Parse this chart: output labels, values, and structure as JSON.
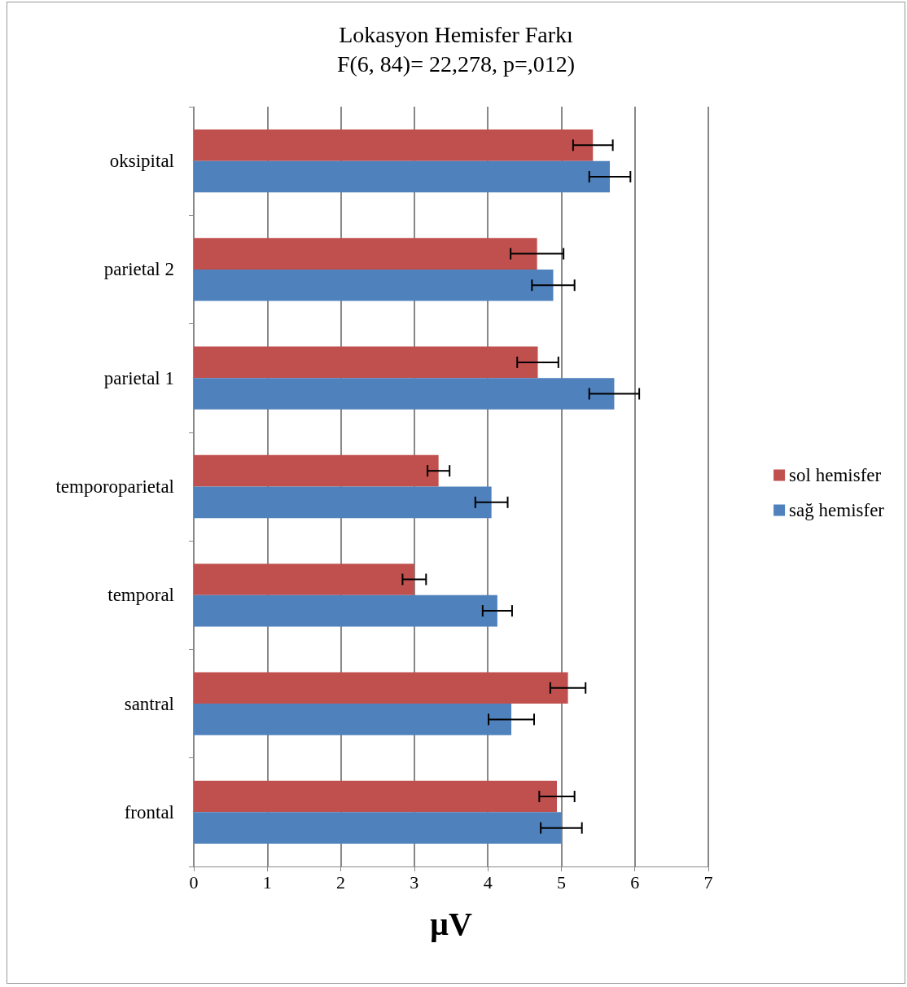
{
  "chart_data": {
    "type": "bar",
    "title": "Lokasyon Hemisfer Farkı",
    "subtitle": "F(6, 84)= 22,278, p=,012)",
    "xlabel": "µV",
    "orientation": "horizontal",
    "categories": [
      "oksipital",
      "parietal 2",
      "parietal 1",
      "temporoparietal",
      "temporal",
      "santral",
      "frontal"
    ],
    "series": [
      {
        "name": "sol hemisfer",
        "color": "#c0504d",
        "values": [
          5.43,
          4.67,
          4.68,
          3.33,
          3.0,
          5.09,
          4.94
        ],
        "errors": [
          0.27,
          0.36,
          0.28,
          0.15,
          0.16,
          0.24,
          0.24
        ]
      },
      {
        "name": "sağ hemisfer",
        "color": "#4f81bd",
        "values": [
          5.66,
          4.89,
          5.72,
          4.05,
          4.13,
          4.32,
          5.0
        ],
        "errors": [
          0.28,
          0.29,
          0.34,
          0.22,
          0.2,
          0.31,
          0.28
        ]
      }
    ],
    "xlim": [
      0,
      7
    ],
    "xticks": [
      0,
      1,
      2,
      3,
      4,
      5,
      6,
      7
    ],
    "grid": "x",
    "legend": "right"
  }
}
